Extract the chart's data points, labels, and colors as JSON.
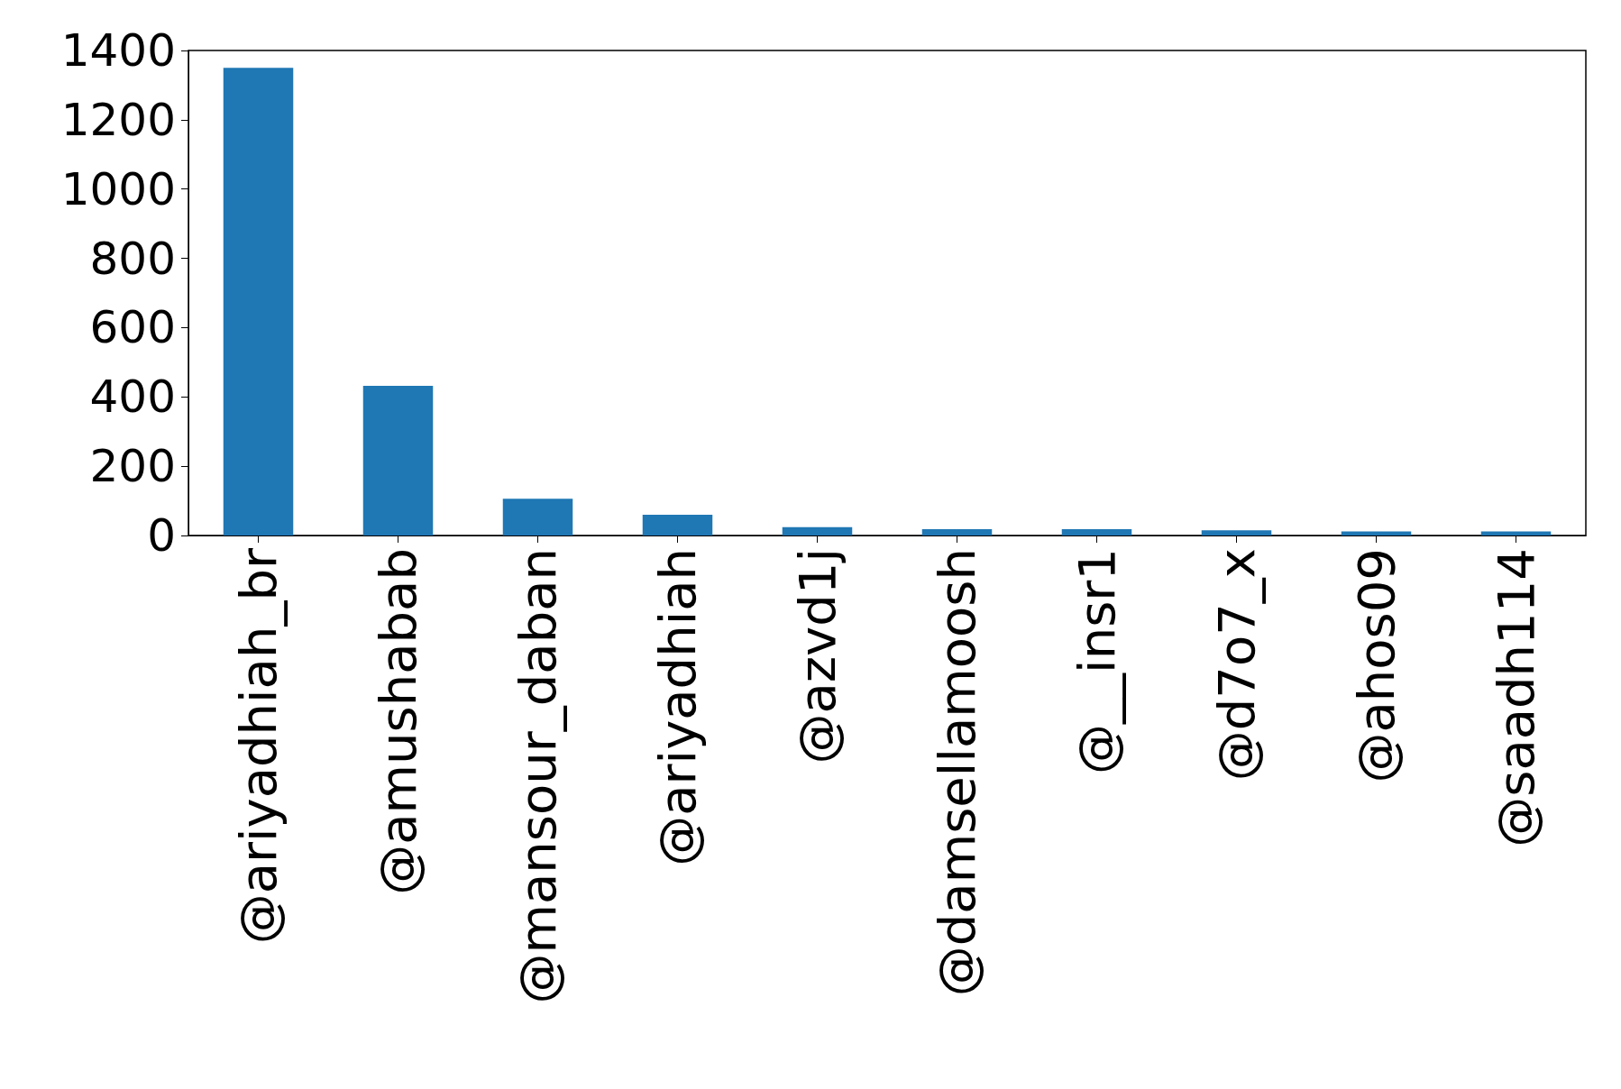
{
  "chart_data": {
    "type": "bar",
    "categories": [
      "@ariyadhiah_br",
      "@amushabab",
      "@mansour_daban",
      "@ariyadhiah",
      "@azvd1j",
      "@damsellamoosh",
      "@__insr1",
      "@d7o7_x",
      "@ahos09",
      "@saadh114"
    ],
    "values": [
      1350,
      432,
      106,
      60,
      24,
      18,
      18,
      15,
      12,
      12
    ],
    "color": "#1f77b4",
    "ylim": [
      0,
      1400
    ],
    "yticks": [
      0,
      200,
      400,
      600,
      800,
      1000,
      1200,
      1400
    ],
    "grid": false
  }
}
